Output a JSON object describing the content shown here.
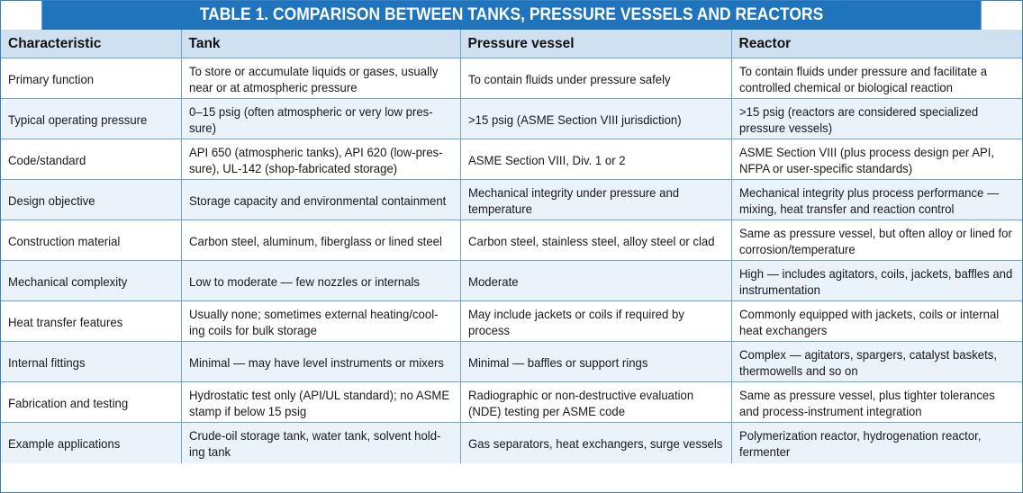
{
  "title": "TABLE 1. COMPARISON BETWEEN TANKS, PRESSURE VESSELS AND REACTORS",
  "headers": [
    "Characteristic",
    "Tank",
    "Pressure vessel",
    "Reactor"
  ],
  "rows": [
    [
      "Primary function",
      "To store or accumulate liquids or gases, usually near or at atmospheric pressure",
      "To contain fluids under pressure safely",
      "To contain fluids under pressure and facilitate a controlled chemical or biological reaction"
    ],
    [
      "Typical operating pressure",
      "0–15 psig (often atmospheric or very low pres-sure)",
      ">15 psig (ASME Section VIII jurisdiction)",
      ">15 psig (reactors are considered specialized pressure vessels)"
    ],
    [
      "Code/standard",
      "API 650 (atmospheric tanks), API 620 (low-pres-sure), UL-142 (shop-fabricated storage)",
      "ASME Section VIII, Div. 1 or 2",
      "ASME Section VIII (plus process design per API, NFPA or user-specific standards)"
    ],
    [
      "Design objective",
      "Storage capacity and environmental containment",
      "Mechanical integrity under pressure and temperature",
      "Mechanical integrity plus process performance — mixing, heat transfer and reaction control"
    ],
    [
      "Construction material",
      "Carbon steel, aluminum, fiberglass or lined steel",
      "Carbon steel, stainless steel, alloy steel or clad",
      "Same as pressure vessel, but often alloy or lined for corrosion/temperature"
    ],
    [
      "Mechanical complexity",
      "Low to moderate — few nozzles or internals",
      "Moderate",
      "High — includes agitators, coils, jackets, baffles and instrumentation"
    ],
    [
      "Heat transfer features",
      "Usually none; sometimes external heating/cool-ing coils for bulk storage",
      "May include jackets or coils if required by process",
      "Commonly equipped with jackets, coils or internal heat exchangers"
    ],
    [
      "Internal fittings",
      "Minimal — may have level instruments or mixers",
      "Minimal — baffles or support rings",
      "Complex — agitators, spargers, catalyst baskets, thermowells and so on"
    ],
    [
      "Fabrication and testing",
      "Hydrostatic test only (API/UL standard); no ASME stamp if below 15 psig",
      "Radiographic or non-destructive evaluation (NDE) testing per ASME code",
      "Same as pressure vessel, plus tighter tolerances and process-instrument integration"
    ],
    [
      "Example applications",
      "Crude-oil storage tank, water tank, solvent hold-ing tank",
      "Gas separators, heat exchangers, surge vessels",
      "Polymerization reactor, hydrogenation reactor, fermenter"
    ]
  ],
  "colors": {
    "title_bg": "#1f74bb",
    "header_bg": "#cfe0f0",
    "alt_row_bg": "#eaf2fa",
    "border": "#6fa3d3"
  }
}
